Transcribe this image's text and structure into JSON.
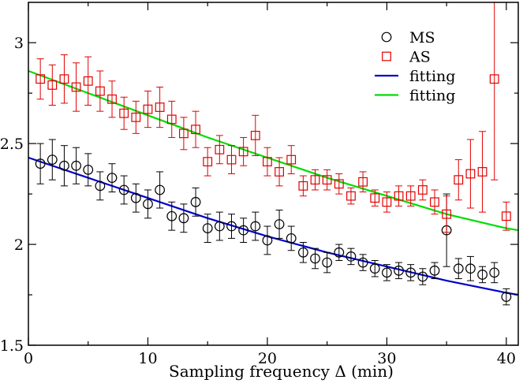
{
  "chart_data": {
    "type": "scatter",
    "title": "",
    "xlabel": "Sampling frequency Δ  (min)",
    "ylabel": "",
    "xlim": [
      0,
      41
    ],
    "ylim": [
      1.5,
      3.2
    ],
    "x_ticks": [
      0,
      10,
      20,
      30,
      40
    ],
    "y_ticks": [
      1.5,
      2,
      2.5,
      3
    ],
    "x_tick_labels": [
      "0",
      "10",
      "20",
      "30",
      "40"
    ],
    "y_tick_labels": [
      "1.5",
      "2",
      "2.5",
      "3"
    ],
    "grid": false,
    "legend_position": "top-right",
    "legend": [
      {
        "label": "MS",
        "marker": "circle",
        "color": "#000000"
      },
      {
        "label": "AS",
        "marker": "square",
        "color": "#e00000"
      },
      {
        "label": "fitting",
        "marker": "line",
        "color": "#0000cc"
      },
      {
        "label": "fitting",
        "marker": "line",
        "color": "#00dd00"
      }
    ],
    "series": [
      {
        "name": "MS",
        "marker": "circle",
        "color": "#000000",
        "x": [
          1,
          2,
          3,
          4,
          5,
          6,
          7,
          8,
          9,
          10,
          11,
          12,
          13,
          14,
          15,
          16,
          17,
          18,
          19,
          20,
          21,
          22,
          23,
          24,
          25,
          26,
          27,
          28,
          29,
          30,
          31,
          32,
          33,
          34,
          35,
          36,
          37,
          38,
          39,
          40
        ],
        "y": [
          2.4,
          2.42,
          2.39,
          2.39,
          2.37,
          2.29,
          2.33,
          2.27,
          2.23,
          2.2,
          2.27,
          2.14,
          2.13,
          2.21,
          2.08,
          2.09,
          2.09,
          2.07,
          2.09,
          2.02,
          2.1,
          2.03,
          1.96,
          1.93,
          1.91,
          1.96,
          1.94,
          1.91,
          1.88,
          1.86,
          1.87,
          1.86,
          1.84,
          1.87,
          2.07,
          1.88,
          1.88,
          1.85,
          1.86,
          1.74
        ],
        "err": [
          0.1,
          0.1,
          0.1,
          0.09,
          0.08,
          0.07,
          0.07,
          0.07,
          0.07,
          0.07,
          0.09,
          0.07,
          0.07,
          0.07,
          0.07,
          0.07,
          0.06,
          0.06,
          0.07,
          0.07,
          0.07,
          0.06,
          0.05,
          0.05,
          0.05,
          0.04,
          0.04,
          0.04,
          0.04,
          0.04,
          0.04,
          0.04,
          0.04,
          0.04,
          0.18,
          0.05,
          0.06,
          0.04,
          0.05,
          0.04
        ]
      },
      {
        "name": "AS",
        "marker": "square",
        "color": "#e00000",
        "x": [
          1,
          2,
          3,
          4,
          5,
          6,
          7,
          8,
          9,
          10,
          11,
          12,
          13,
          14,
          15,
          16,
          17,
          18,
          19,
          20,
          21,
          22,
          23,
          24,
          25,
          26,
          27,
          28,
          29,
          30,
          31,
          32,
          33,
          34,
          35,
          36,
          37,
          38,
          39,
          40
        ],
        "y": [
          2.82,
          2.79,
          2.82,
          2.78,
          2.81,
          2.76,
          2.72,
          2.65,
          2.63,
          2.67,
          2.68,
          2.62,
          2.55,
          2.57,
          2.41,
          2.47,
          2.42,
          2.46,
          2.54,
          2.41,
          2.36,
          2.42,
          2.29,
          2.32,
          2.32,
          2.3,
          2.24,
          2.31,
          2.23,
          2.21,
          2.24,
          2.24,
          2.27,
          2.21,
          2.15,
          2.32,
          2.35,
          2.36,
          2.82,
          2.14
        ],
        "err": [
          0.1,
          0.1,
          0.12,
          0.12,
          0.12,
          0.1,
          0.09,
          0.08,
          0.08,
          0.09,
          0.1,
          0.09,
          0.08,
          0.09,
          0.07,
          0.07,
          0.07,
          0.07,
          0.1,
          0.07,
          0.07,
          0.07,
          0.05,
          0.05,
          0.05,
          0.05,
          0.04,
          0.05,
          0.04,
          0.05,
          0.05,
          0.05,
          0.05,
          0.06,
          0.09,
          0.1,
          0.17,
          0.2,
          0.5,
          0.07
        ]
      },
      {
        "name": "fitting",
        "type": "line",
        "color": "#0000cc",
        "x": [
          0,
          5,
          10,
          15,
          20,
          25,
          30,
          35,
          40,
          41
        ],
        "y": [
          2.43,
          2.33,
          2.23,
          2.13,
          2.04,
          1.96,
          1.89,
          1.82,
          1.76,
          1.75
        ]
      },
      {
        "name": "fitting",
        "type": "line",
        "color": "#00dd00",
        "x": [
          0,
          5,
          10,
          15,
          20,
          25,
          30,
          35,
          40,
          41
        ],
        "y": [
          2.86,
          2.75,
          2.64,
          2.53,
          2.43,
          2.33,
          2.24,
          2.15,
          2.08,
          2.07
        ]
      }
    ]
  }
}
